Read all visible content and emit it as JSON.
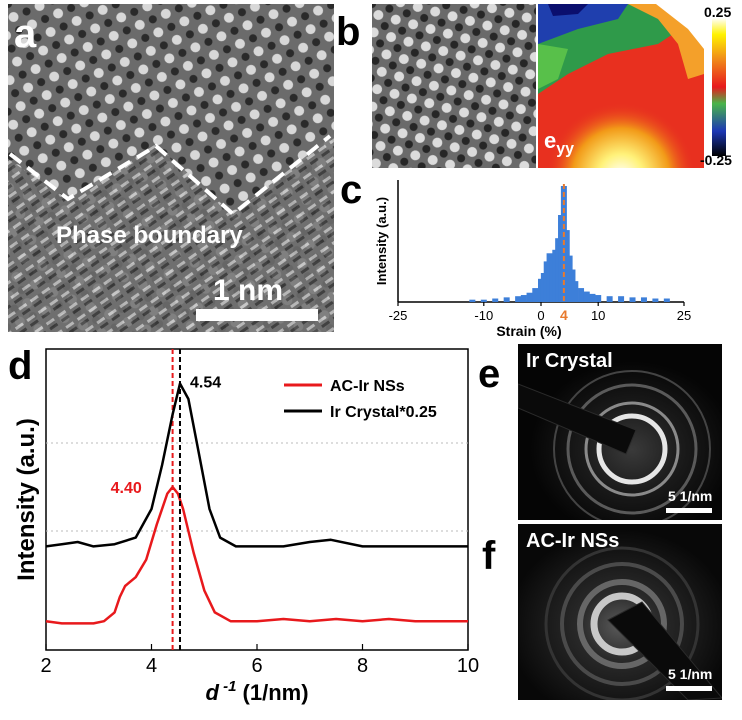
{
  "panel_labels": {
    "a": "a",
    "b": "b",
    "c": "c",
    "d": "d",
    "e": "e",
    "f": "f"
  },
  "panel_a": {
    "boundary_label": "Phase boundary",
    "scale_bar_label": "1 nm"
  },
  "panel_b": {
    "map_label": "e",
    "map_label_sub": "yy",
    "colorbar_max": "0.25",
    "colorbar_min": "-0.25"
  },
  "panel_e": {
    "title": "Ir Crystal",
    "scale_label": "5 1/nm"
  },
  "panel_f": {
    "title": "AC-Ir NSs",
    "scale_label": "5 1/nm"
  },
  "colors": {
    "ac_ir": "#e8191c",
    "ir_crystal": "#000000",
    "hist_fill": "#3d7fd9",
    "marker": "#e87a2e"
  },
  "chart_data": [
    {
      "type": "histogram",
      "panel": "c",
      "xlabel": "Strain (%)",
      "ylabel": "Intensity (a.u.)",
      "xlim": [
        -25,
        25
      ],
      "xticks": [
        "-25",
        "-10",
        "0",
        "10",
        "25"
      ],
      "marker": {
        "x": 4,
        "label": "4"
      },
      "bins": [
        {
          "x": -12,
          "y": 0.02
        },
        {
          "x": -10,
          "y": 0.02
        },
        {
          "x": -8,
          "y": 0.03
        },
        {
          "x": -6,
          "y": 0.04
        },
        {
          "x": -4,
          "y": 0.05
        },
        {
          "x": -3,
          "y": 0.06
        },
        {
          "x": -2,
          "y": 0.08
        },
        {
          "x": -1,
          "y": 0.12
        },
        {
          "x": 0,
          "y": 0.2
        },
        {
          "x": 0.5,
          "y": 0.25
        },
        {
          "x": 1,
          "y": 0.35
        },
        {
          "x": 1.5,
          "y": 0.42
        },
        {
          "x": 2,
          "y": 0.38
        },
        {
          "x": 2.5,
          "y": 0.45
        },
        {
          "x": 3,
          "y": 0.55
        },
        {
          "x": 3.5,
          "y": 0.75
        },
        {
          "x": 4,
          "y": 1.0
        },
        {
          "x": 4.5,
          "y": 0.62
        },
        {
          "x": 5,
          "y": 0.4
        },
        {
          "x": 5.5,
          "y": 0.28
        },
        {
          "x": 6,
          "y": 0.18
        },
        {
          "x": 7,
          "y": 0.12
        },
        {
          "x": 8,
          "y": 0.09
        },
        {
          "x": 9,
          "y": 0.07
        },
        {
          "x": 10,
          "y": 0.06
        },
        {
          "x": 12,
          "y": 0.05
        },
        {
          "x": 14,
          "y": 0.05
        },
        {
          "x": 16,
          "y": 0.04
        },
        {
          "x": 18,
          "y": 0.04
        },
        {
          "x": 20,
          "y": 0.03
        },
        {
          "x": 22,
          "y": 0.03
        }
      ]
    },
    {
      "type": "line",
      "panel": "d",
      "xlabel": "d -1 (1/nm)",
      "xlabel_main": "d",
      "xlabel_sup": "-1",
      "xlabel_unit": "(1/nm)",
      "ylabel": "Intensity (a.u.)",
      "xlim": [
        2,
        10
      ],
      "xticks": [
        "2",
        "4",
        "6",
        "8",
        "10"
      ],
      "legend_position": "top-right",
      "series": [
        {
          "name": "AC-Ir NSs",
          "peak": 4.4,
          "peak_label": "4.40",
          "points": [
            [
              2.0,
              0.04
            ],
            [
              2.3,
              0.03
            ],
            [
              2.6,
              0.03
            ],
            [
              2.9,
              0.03
            ],
            [
              3.1,
              0.04
            ],
            [
              3.3,
              0.08
            ],
            [
              3.4,
              0.15
            ],
            [
              3.5,
              0.2
            ],
            [
              3.7,
              0.24
            ],
            [
              3.9,
              0.32
            ],
            [
              4.1,
              0.48
            ],
            [
              4.3,
              0.62
            ],
            [
              4.4,
              0.65
            ],
            [
              4.5,
              0.62
            ],
            [
              4.6,
              0.55
            ],
            [
              4.8,
              0.35
            ],
            [
              5.0,
              0.18
            ],
            [
              5.2,
              0.08
            ],
            [
              5.5,
              0.04
            ],
            [
              6.0,
              0.04
            ],
            [
              6.5,
              0.05
            ],
            [
              7.0,
              0.04
            ],
            [
              7.5,
              0.05
            ],
            [
              8.0,
              0.04
            ],
            [
              8.5,
              0.05
            ],
            [
              9.0,
              0.04
            ],
            [
              9.5,
              0.04
            ],
            [
              10.0,
              0.04
            ]
          ]
        },
        {
          "name": "Ir Crystal*0.25",
          "peak": 4.54,
          "peak_label": "4.54",
          "points": [
            [
              2.0,
              0.38
            ],
            [
              2.3,
              0.39
            ],
            [
              2.6,
              0.4
            ],
            [
              2.9,
              0.38
            ],
            [
              3.3,
              0.39
            ],
            [
              3.7,
              0.42
            ],
            [
              4.0,
              0.55
            ],
            [
              4.2,
              0.75
            ],
            [
              4.4,
              0.98
            ],
            [
              4.54,
              1.12
            ],
            [
              4.7,
              1.05
            ],
            [
              4.9,
              0.8
            ],
            [
              5.1,
              0.55
            ],
            [
              5.3,
              0.42
            ],
            [
              5.6,
              0.38
            ],
            [
              6.0,
              0.38
            ],
            [
              6.5,
              0.38
            ],
            [
              7.0,
              0.4
            ],
            [
              7.4,
              0.41
            ],
            [
              8.0,
              0.38
            ],
            [
              8.5,
              0.38
            ],
            [
              9.0,
              0.38
            ],
            [
              9.5,
              0.38
            ],
            [
              10.0,
              0.38
            ]
          ]
        }
      ]
    }
  ]
}
